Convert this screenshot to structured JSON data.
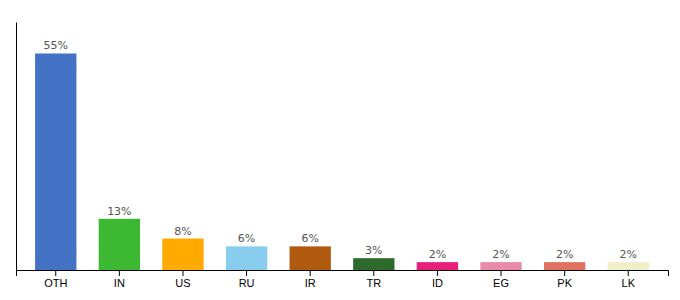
{
  "chart_data": {
    "type": "bar",
    "categories": [
      "OTH",
      "IN",
      "US",
      "RU",
      "IR",
      "TR",
      "ID",
      "EG",
      "PK",
      "LK"
    ],
    "values": [
      55,
      13,
      8,
      6,
      6,
      3,
      2,
      2,
      2,
      2
    ],
    "value_labels": [
      "55%",
      "13%",
      "8%",
      "6%",
      "6%",
      "3%",
      "2%",
      "2%",
      "2%",
      "2%"
    ],
    "colors": [
      "#4472c4",
      "#3cb832",
      "#ffaa00",
      "#88ccee",
      "#b05a10",
      "#2d6b2d",
      "#e9207a",
      "#e88aaa",
      "#e07060",
      "#f0eec8"
    ],
    "ylim": [
      0,
      63
    ],
    "data_labels": true,
    "tick_labels": "x",
    "grid": false
  }
}
